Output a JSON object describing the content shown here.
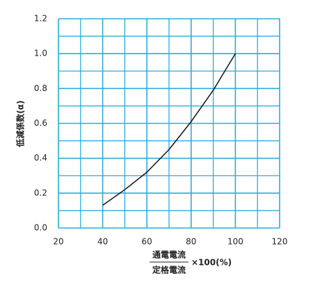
{
  "chart_data": {
    "type": "line",
    "ylabel": "低減係数(α)",
    "xlabel": {
      "numerator": "通電電流",
      "denominator": "定格電流",
      "suffix": "×100(%)"
    },
    "x": [
      40,
      50,
      60,
      70,
      80,
      90,
      100
    ],
    "series": [
      {
        "color": "#111111",
        "values": [
          0.13,
          0.22,
          0.32,
          0.45,
          0.61,
          0.79,
          1.0
        ]
      }
    ],
    "xlim": [
      20,
      120
    ],
    "xticks": [
      20,
      40,
      60,
      80,
      100,
      120
    ],
    "x_minor_ticks": [
      30,
      50,
      70,
      90,
      110
    ],
    "ylim": [
      0,
      1.2
    ],
    "yticks": [
      {
        "value": 0,
        "label": "0.0"
      },
      {
        "value": 0.2,
        "label": "0.2"
      },
      {
        "value": 0.4,
        "label": "0.4"
      },
      {
        "value": 0.6,
        "label": "0.6"
      },
      {
        "value": 0.8,
        "label": "0.8"
      },
      {
        "value": 1.0,
        "label": "1.0"
      },
      {
        "value": 1.2,
        "label": "1.2"
      }
    ],
    "y_minor_ticks": [
      0.1,
      0.3,
      0.5,
      0.7,
      0.9,
      1.1
    ],
    "grid": true,
    "grid_color": "#29abe2"
  }
}
